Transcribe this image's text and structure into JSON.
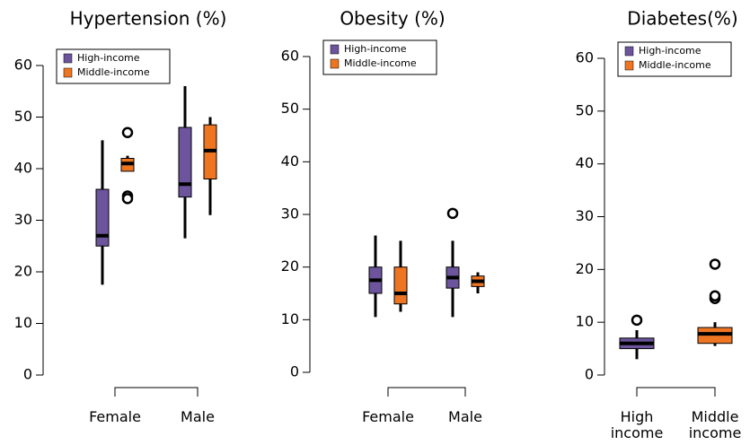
{
  "chart_data": [
    {
      "type": "box",
      "title": "Hypertension (%)",
      "categories": [
        "Female",
        "Male"
      ],
      "ylim": [
        0,
        60
      ],
      "yticks": [
        0,
        10,
        20,
        30,
        40,
        50,
        60
      ],
      "legend": "upper left",
      "series": [
        {
          "name": "High-income",
          "color": "#6c559c",
          "values": [
            {
              "whislo": 17.5,
              "q1": 25,
              "med": 27,
              "q3": 36,
              "whishi": 45.5,
              "fliers": []
            },
            {
              "whislo": 26.5,
              "q1": 34.5,
              "med": 37,
              "q3": 48,
              "whishi": 56,
              "fliers": []
            }
          ]
        },
        {
          "name": "Middle-income",
          "color": "#ee7623",
          "values": [
            {
              "whislo": 39.5,
              "q1": 39.5,
              "med": 41,
              "q3": 42,
              "whishi": 42.5,
              "fliers": [
                47,
                34.7,
                34.2
              ]
            },
            {
              "whislo": 31,
              "q1": 38,
              "med": 43.5,
              "q3": 48.5,
              "whishi": 50,
              "fliers": []
            }
          ]
        }
      ]
    },
    {
      "type": "box",
      "title": "Obesity (%)",
      "categories": [
        "Female",
        "Male"
      ],
      "ylim": [
        0,
        60
      ],
      "yticks": [
        0,
        10,
        20,
        30,
        40,
        50,
        60
      ],
      "legend": "upper left",
      "series": [
        {
          "name": "High-income",
          "color": "#6c559c",
          "values": [
            {
              "whislo": 10.5,
              "q1": 15,
              "med": 17.5,
              "q3": 20,
              "whishi": 26,
              "fliers": []
            },
            {
              "whislo": 10.5,
              "q1": 16,
              "med": 18,
              "q3": 20,
              "whishi": 25,
              "fliers": [
                30.2
              ]
            }
          ]
        },
        {
          "name": "Middle-income",
          "color": "#ee7623",
          "values": [
            {
              "whislo": 11.5,
              "q1": 13,
              "med": 15,
              "q3": 20,
              "whishi": 25,
              "fliers": []
            },
            {
              "whislo": 15,
              "q1": 16.3,
              "med": 17.3,
              "q3": 18.3,
              "whishi": 19,
              "fliers": []
            }
          ]
        }
      ]
    },
    {
      "type": "box",
      "title": "Diabetes(%)",
      "categories": [
        "High income",
        "Middle income"
      ],
      "ylim": [
        0,
        60
      ],
      "yticks": [
        0,
        10,
        20,
        30,
        40,
        50,
        60
      ],
      "legend": "upper left",
      "series": [
        {
          "name": "High-income",
          "color": "#6c559c",
          "values": [
            {
              "whislo": 3,
              "q1": 5,
              "med": 6,
              "q3": 7,
              "whishi": 8.5,
              "fliers": [
                10.4
              ]
            },
            null
          ]
        },
        {
          "name": "Middle-income",
          "color": "#ee7623",
          "values": [
            null,
            {
              "whislo": 5.5,
              "q1": 6,
              "med": 7.8,
              "q3": 9,
              "whishi": 10,
              "fliers": [
                14.5,
                15,
                21
              ]
            }
          ]
        }
      ]
    }
  ]
}
